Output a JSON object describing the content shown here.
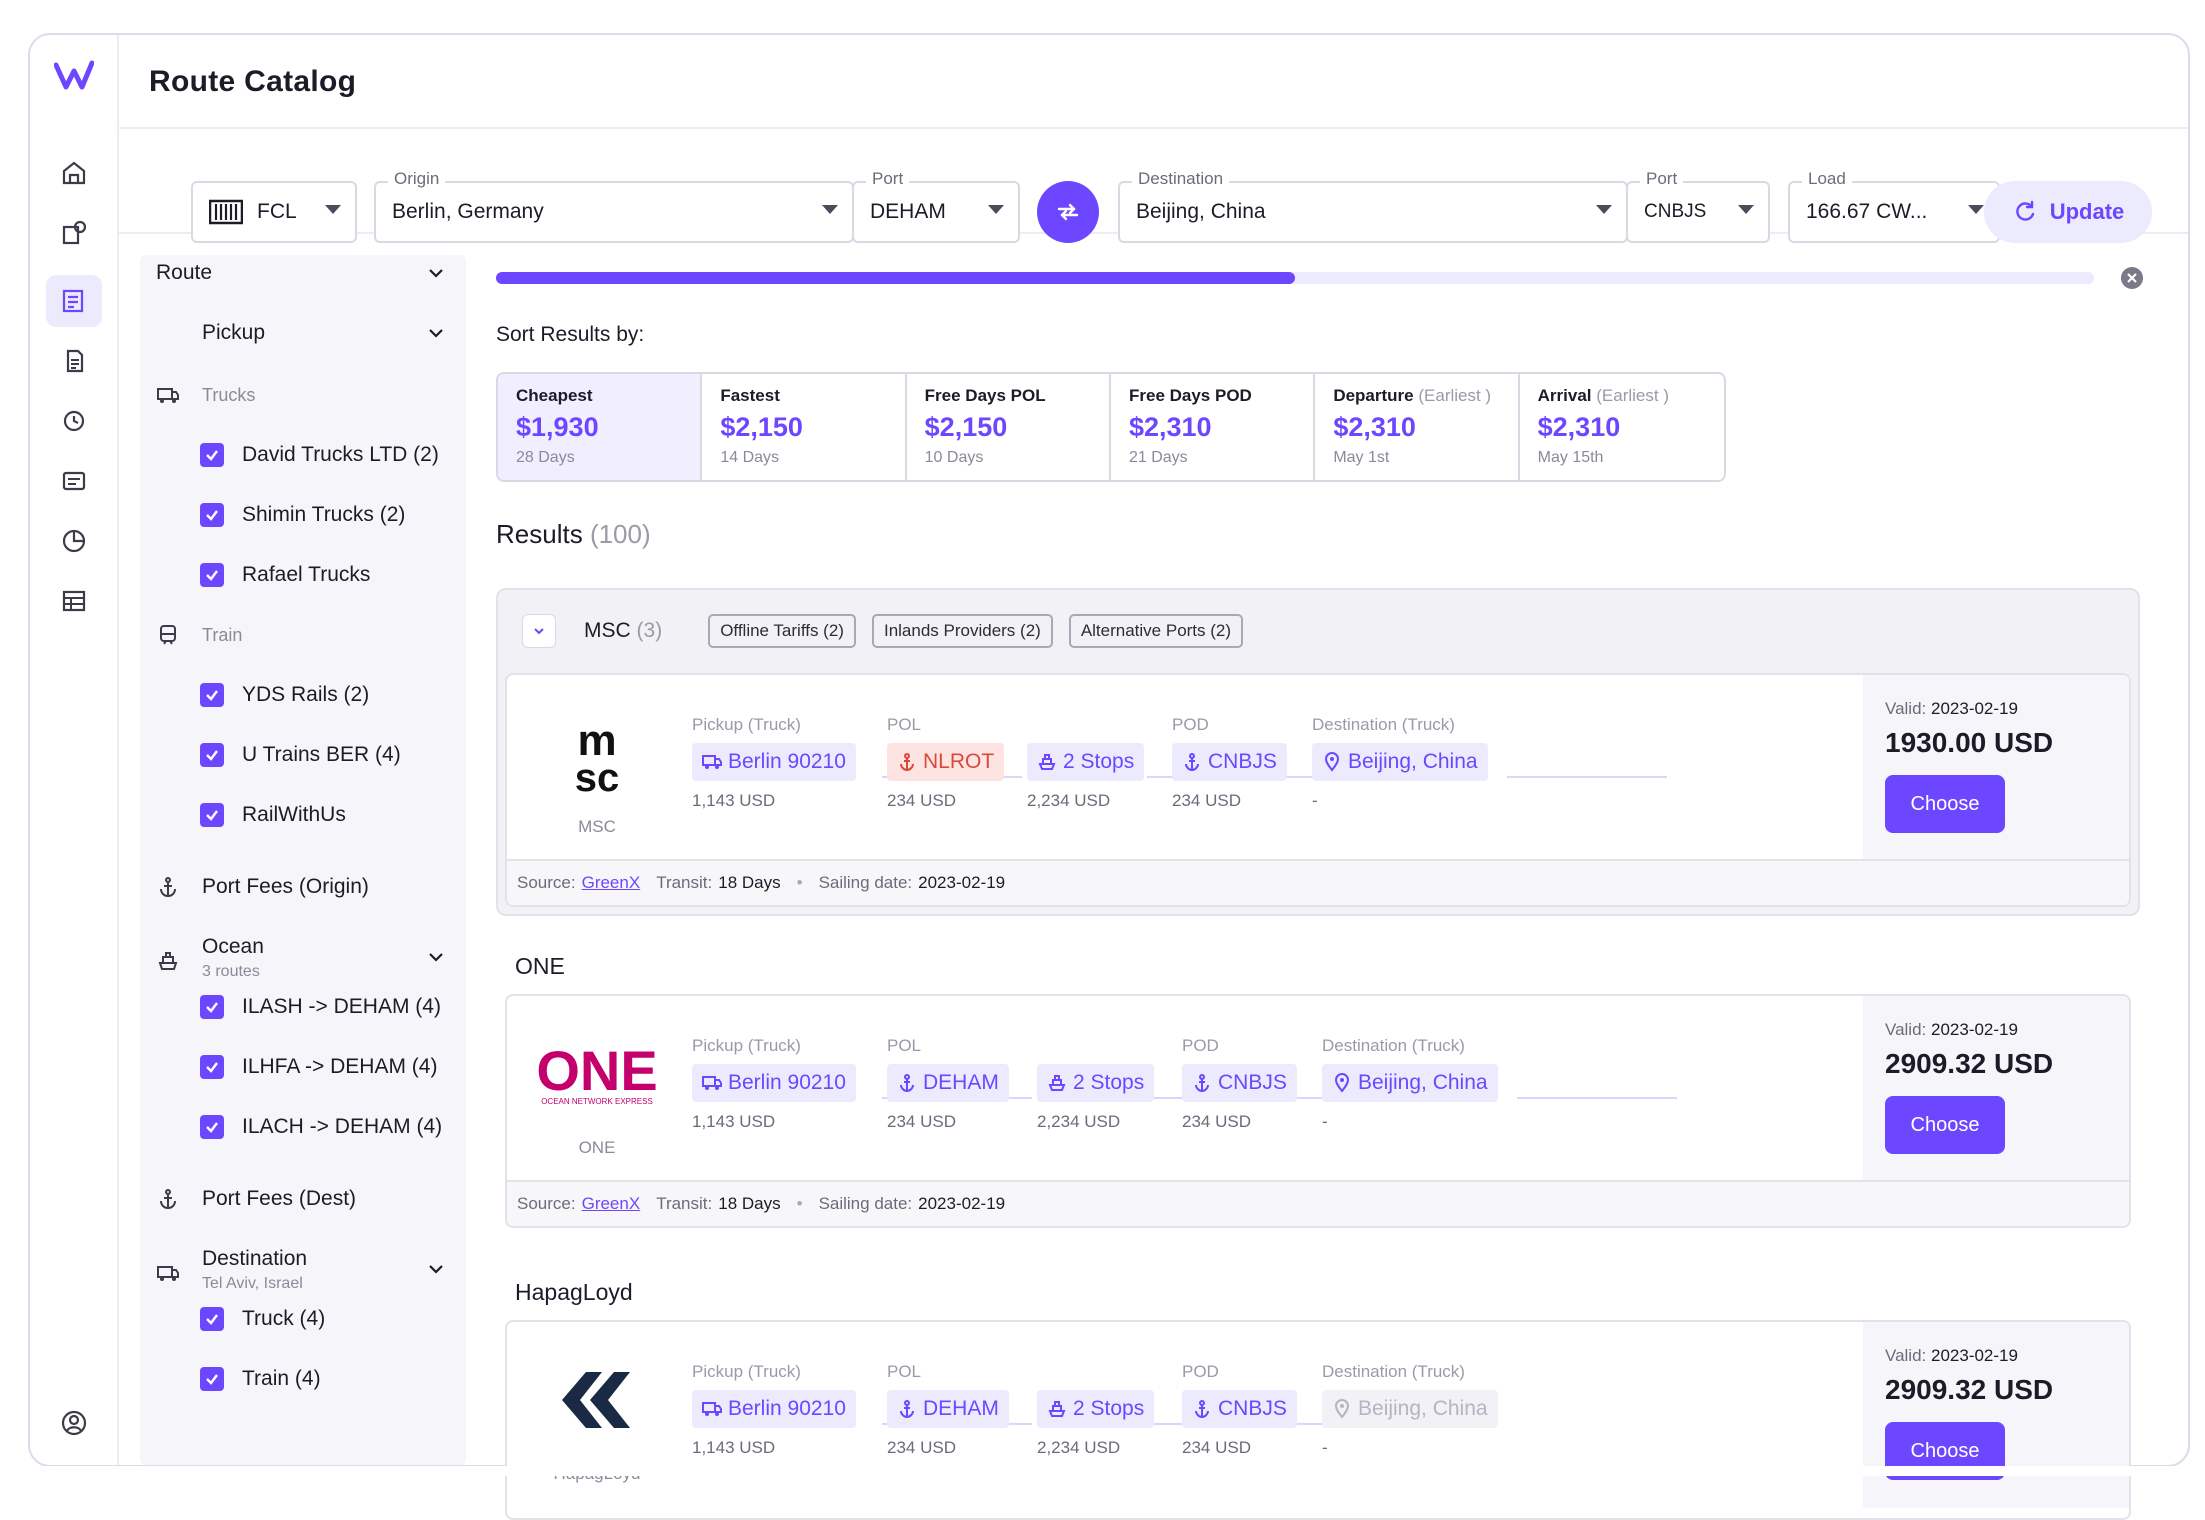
{
  "app": {
    "title": "Route Catalog"
  },
  "search": {
    "mode": "FCL",
    "origin_label": "Origin",
    "origin_value": "Berlin, Germany",
    "origin_port_label": "Port",
    "origin_port_value": "DEHAM",
    "destination_label": "Destination",
    "destination_value": "Beijing, China",
    "dest_port_label": "Port",
    "dest_port_value": "CNBJS",
    "load_label": "Load",
    "load_value": "166.67 CW...",
    "update_label": "Update"
  },
  "filters": {
    "route": "Route",
    "pickup": "Pickup",
    "trucks": "Trucks",
    "trucks_items": [
      "David Trucks LTD (2)",
      "Shimin Trucks (2)",
      "Rafael Trucks"
    ],
    "train": "Train",
    "train_items": [
      "YDS Rails (2)",
      "U Trains BER (4)",
      "RailWithUs"
    ],
    "port_fees_origin": "Port Fees (Origin)",
    "ocean": "Ocean",
    "ocean_sub": "3 routes",
    "ocean_items": [
      "ILASH -> DEHAM (4)",
      "ILHFA -> DEHAM (4)",
      "ILACH -> DEHAM (4)"
    ],
    "port_fees_dest": "Port Fees (Dest)",
    "destination": "Destination",
    "destination_sub": "Tel Aviv, Israel",
    "destination_items": [
      "Truck (4)",
      "Train (4)"
    ]
  },
  "progress": {
    "value": 0.5
  },
  "sort": {
    "title": "Sort Results by:",
    "options": [
      {
        "title": "Cheapest",
        "muted": "",
        "price": "$1,930",
        "sub": "28 Days"
      },
      {
        "title": "Fastest",
        "muted": "",
        "price": "$2,150",
        "sub": "14 Days"
      },
      {
        "title": "Free Days POL",
        "muted": "",
        "price": "$2,150",
        "sub": "10 Days"
      },
      {
        "title": "Free Days POD",
        "muted": "",
        "price": "$2,310",
        "sub": "21 Days"
      },
      {
        "title": "Departure",
        "muted": "(Earliest )",
        "price": "$2,310",
        "sub": "May 1st"
      },
      {
        "title": "Arrival",
        "muted": "(Earliest )",
        "price": "$2,310",
        "sub": "May 15th"
      }
    ]
  },
  "results": {
    "title": "Results",
    "count": "(100)"
  },
  "msc_group": {
    "name": "MSC",
    "count": "(3)",
    "tags": [
      "Offline Tariffs (2)",
      "Inlands Providers (2)",
      "Alternative Ports (2)"
    ]
  },
  "leg_headers": {
    "pickup": "Pickup (Truck)",
    "pol": "POL",
    "pod": "POD",
    "dest": "Destination (Truck)"
  },
  "cards": [
    {
      "brand": "MSC",
      "pickup": "Berlin 90210",
      "pickup_cost": "1,143 USD",
      "pol": "NLROT",
      "pol_cost": "234 USD",
      "stops": "2 Stops",
      "stops_cost": "2,234 USD",
      "pod": "CNBJS",
      "pod_cost": "234 USD",
      "dest": "Beijing, China",
      "dest_cost": "-",
      "valid_label": "Valid:",
      "valid": "2023-02-19",
      "price": "1930.00 USD",
      "choose": "Choose",
      "source_label": "Source:",
      "source": "GreenX",
      "transit_label": "Transit:",
      "transit": "18 Days",
      "sailing_label": "Sailing date:",
      "sailing": "2023-02-19"
    },
    {
      "title": "ONE",
      "brand": "ONE",
      "logo_sub": "OCEAN NETWORK EXPRESS",
      "pickup": "Berlin 90210",
      "pickup_cost": "1,143 USD",
      "pol": "DEHAM",
      "pol_cost": "234 USD",
      "stops": "2 Stops",
      "stops_cost": "2,234 USD",
      "pod": "CNBJS",
      "pod_cost": "234 USD",
      "dest": "Beijing, China",
      "dest_cost": "-",
      "valid_label": "Valid:",
      "valid": "2023-02-19",
      "price": "2909.32 USD",
      "choose": "Choose",
      "source_label": "Source:",
      "source": "GreenX",
      "transit_label": "Transit:",
      "transit": "18 Days",
      "sailing_label": "Sailing date:",
      "sailing": "2023-02-19"
    },
    {
      "title": "HapagLoyd",
      "brand": "HapagLoyd",
      "pickup": "Berlin 90210",
      "pickup_cost": "1,143 USD",
      "pol": "DEHAM",
      "pol_cost": "234 USD",
      "stops": "2 Stops",
      "stops_cost": "2,234 USD",
      "pod": "CNBJS",
      "pod_cost": "234 USD",
      "dest": "Beijing, China",
      "dest_cost": "-",
      "valid_label": "Valid:",
      "valid": "2023-02-19",
      "price": "2909.32 USD",
      "choose": "Choose"
    }
  ],
  "colors": {
    "accent": "#6c47ff",
    "accent_light": "#ecebfd",
    "danger": "#d94a3c",
    "one_brand": "#c4006d"
  }
}
